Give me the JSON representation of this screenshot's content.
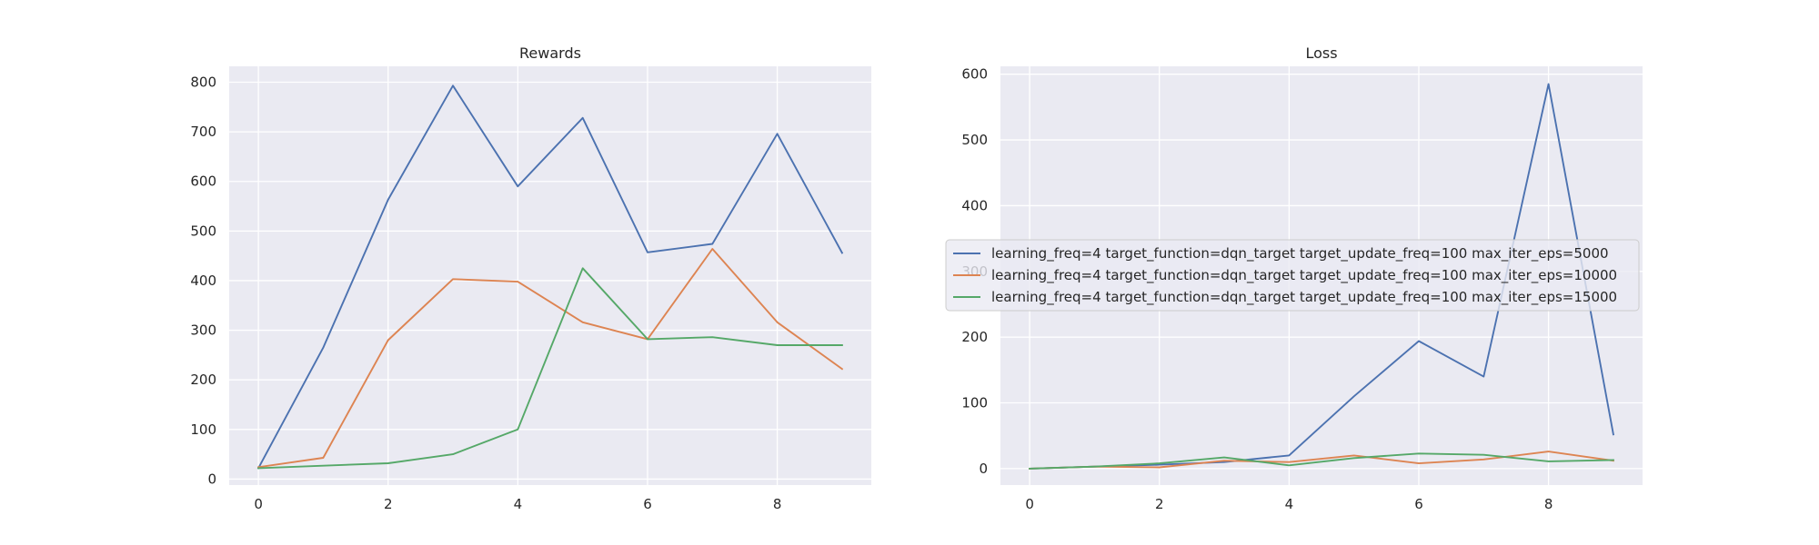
{
  "chart_data": [
    {
      "type": "line",
      "title": "Rewards",
      "xlabel": "",
      "ylabel": "",
      "xlim": [
        -0.45,
        9.45
      ],
      "ylim": [
        -12,
        832
      ],
      "xticks": [
        0,
        2,
        4,
        6,
        8
      ],
      "yticks": [
        0,
        100,
        200,
        300,
        400,
        500,
        600,
        700,
        800
      ],
      "x": [
        0,
        1,
        2,
        3,
        4,
        5,
        6,
        7,
        8,
        9
      ],
      "grid": true,
      "series": [
        {
          "color": "#4c72b0",
          "values": [
            22,
            265,
            563,
            793,
            590,
            728,
            457,
            474,
            696,
            456
          ]
        },
        {
          "color": "#dd8452",
          "values": [
            24,
            43,
            280,
            403,
            398,
            316,
            282,
            464,
            316,
            222
          ]
        },
        {
          "color": "#55a868",
          "values": [
            22,
            27,
            32,
            50,
            100,
            425,
            282,
            286,
            270,
            270
          ]
        }
      ]
    },
    {
      "type": "line",
      "title": "Loss",
      "xlabel": "",
      "ylabel": "",
      "xlim": [
        -0.45,
        9.45
      ],
      "ylim": [
        -25,
        612
      ],
      "xticks": [
        0,
        2,
        4,
        6,
        8
      ],
      "yticks": [
        0,
        100,
        200,
        300,
        400,
        500,
        600
      ],
      "x": [
        0,
        1,
        2,
        3,
        4,
        5,
        6,
        7,
        8,
        9
      ],
      "grid": true,
      "legend": "center",
      "series": [
        {
          "name": "learning_freq=4 target_function=dqn_target target_update_freq=100 max_iter_eps=5000",
          "color": "#4c72b0",
          "values": [
            0,
            3,
            6,
            10,
            20,
            110,
            194,
            140,
            585,
            52
          ]
        },
        {
          "name": "learning_freq=4 target_function=dqn_target target_update_freq=100 max_iter_eps=10000",
          "color": "#dd8452",
          "values": [
            0,
            3,
            2,
            12,
            10,
            20,
            8,
            14,
            26,
            12
          ]
        },
        {
          "name": "learning_freq=4 target_function=dqn_target target_update_freq=100 max_iter_eps=15000",
          "color": "#55a868",
          "values": [
            0,
            3,
            8,
            17,
            5,
            16,
            23,
            21,
            11,
            13
          ]
        }
      ]
    }
  ]
}
